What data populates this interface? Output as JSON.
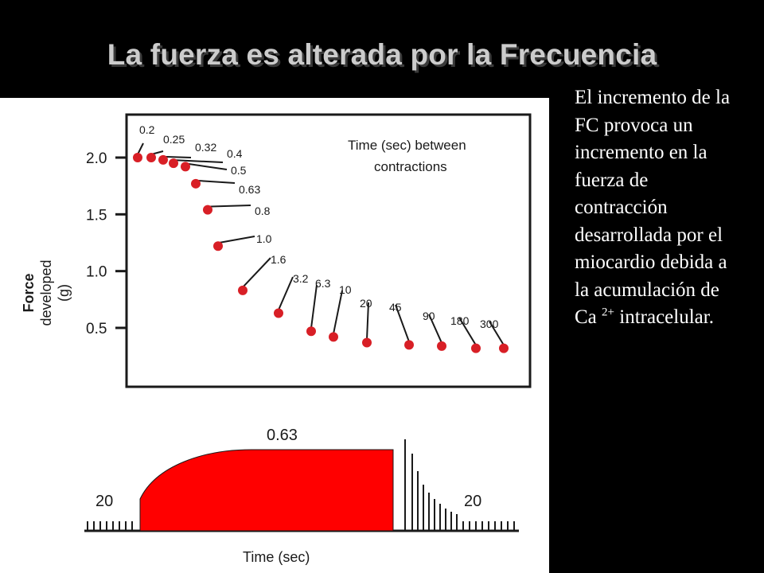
{
  "slide": {
    "title": "La fuerza es alterada por la Frecuencia",
    "caption_main": "El incremento de la FC provoca un incremento en la fuerza de contracción desarrollada por el miocardio debida a la acumulación de Ca",
    "caption_sup": "2+",
    "caption_end": "intracelular."
  },
  "chart_data": [
    {
      "type": "scatter",
      "title": "",
      "annotation": "Time (sec) between contractions",
      "xlabel": "",
      "ylabel": "Force developed (g)",
      "ylim": [
        0.5,
        2.0
      ],
      "yticks": [
        "2.0",
        "1.5",
        "1.0",
        "0.5"
      ],
      "grid": false,
      "series": [
        {
          "color": "#d81f26",
          "labels": [
            "0.2",
            "0.25",
            "0.32",
            "0.4",
            "0.5",
            "0.63",
            "0.8",
            "1.0",
            "1.6",
            "3.2",
            "6.3",
            "10",
            "20",
            "45",
            "90",
            "180",
            "300"
          ],
          "values": [
            2.0,
            2.0,
            1.98,
            1.95,
            1.92,
            1.77,
            1.54,
            1.22,
            0.83,
            0.63,
            0.47,
            0.42,
            0.37,
            0.35,
            0.34,
            0.32,
            0.32
          ]
        }
      ]
    },
    {
      "type": "area",
      "xlabel": "Time (sec)",
      "labels": {
        "left": "20",
        "middle": "0.63",
        "right": "20"
      },
      "color": "#ff0000"
    }
  ]
}
